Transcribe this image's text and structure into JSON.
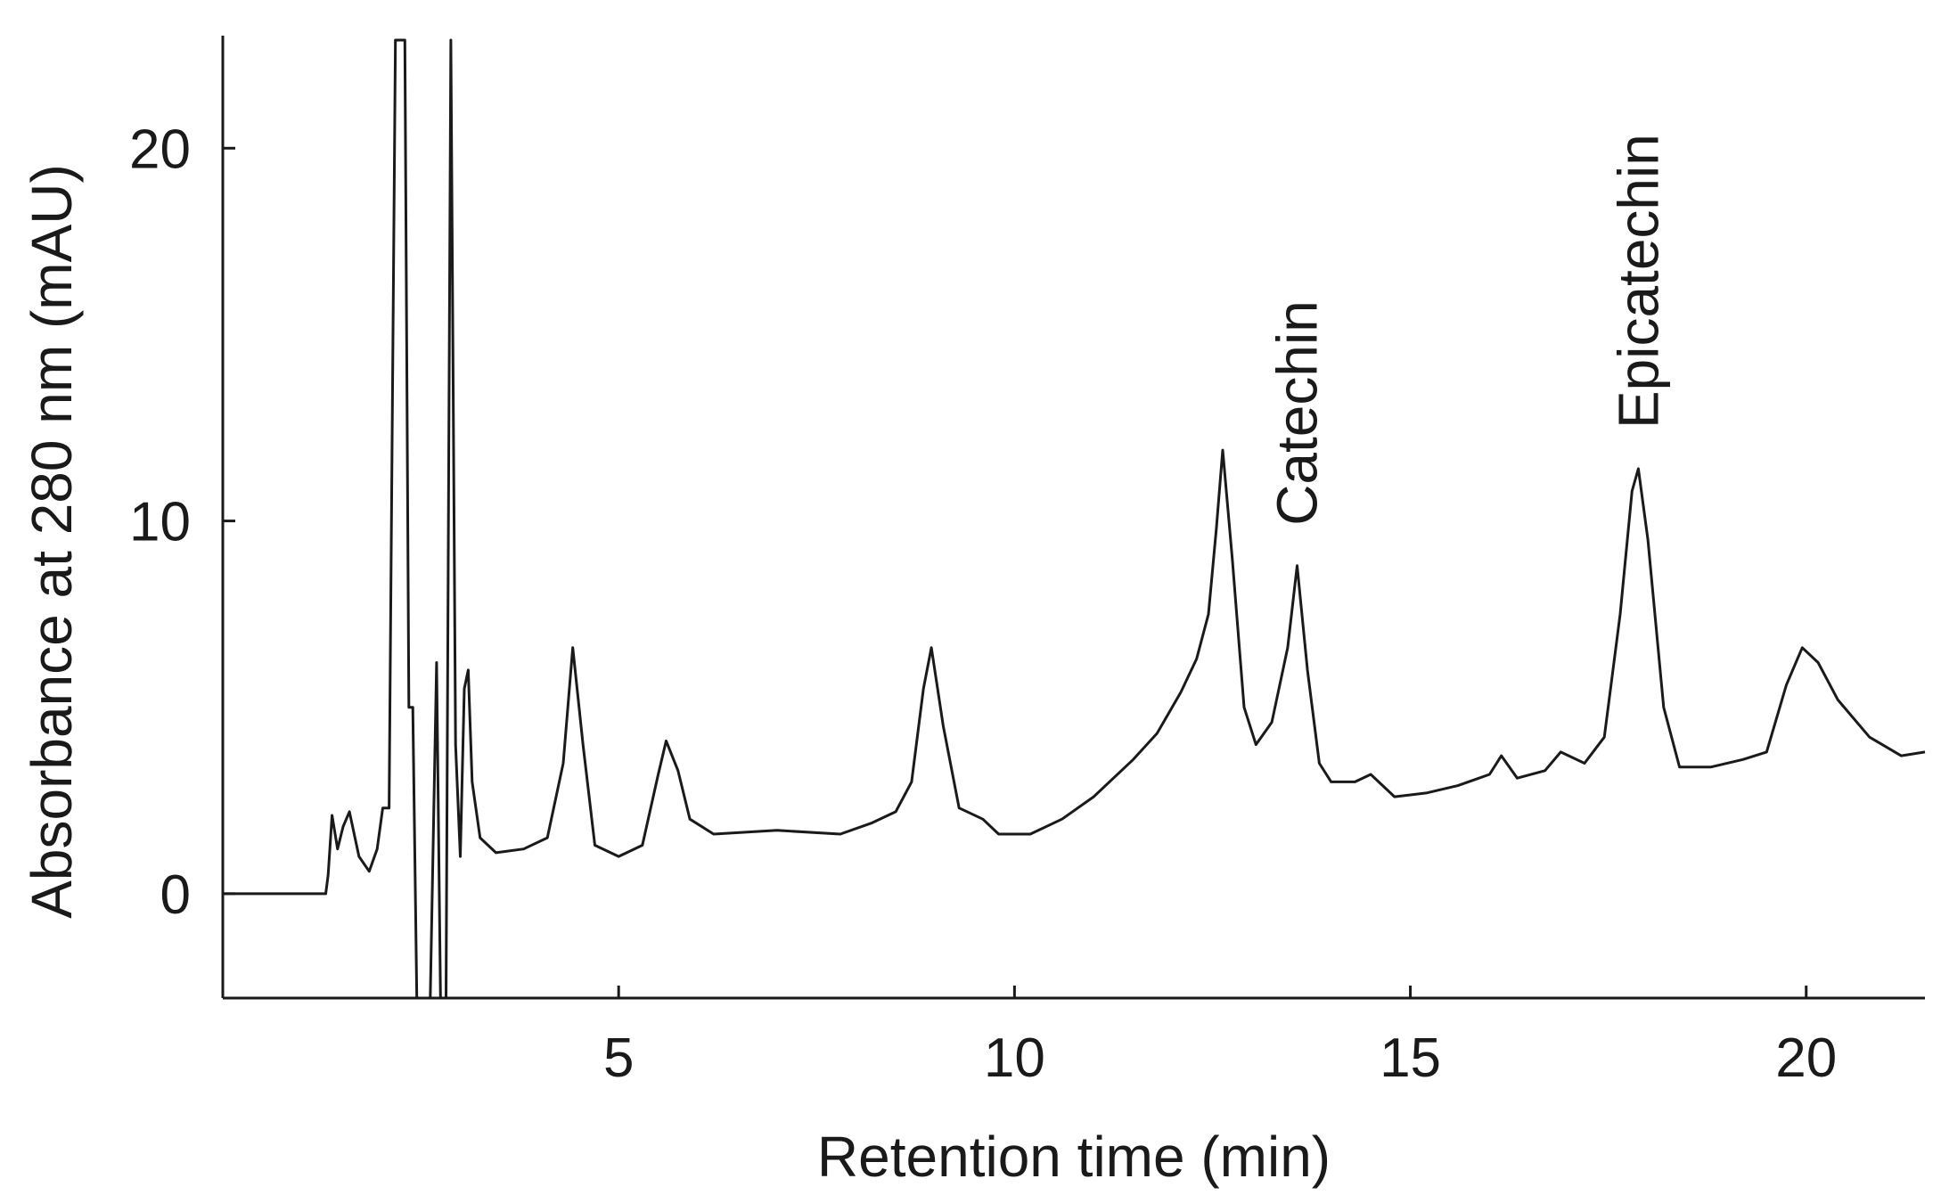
{
  "chart_data": {
    "type": "line",
    "title": "",
    "xlabel": "Retention time (min)",
    "ylabel": "Absorbance at 280 nm (mAU)",
    "xlim": [
      0,
      21.5
    ],
    "ylim": [
      -2.8,
      22.9
    ],
    "x_ticks": [
      5,
      10,
      15,
      20
    ],
    "x_tick_labels": [
      "5",
      "10",
      "15",
      "20"
    ],
    "y_ticks": [
      0,
      10,
      20
    ],
    "y_tick_labels": [
      "0",
      "10",
      "20"
    ],
    "grid": false,
    "legend": "none",
    "line_color": "#1a1a1a",
    "series": [
      {
        "points": [
          [
            0.0,
            0.0
          ],
          [
            1.3,
            0.0
          ],
          [
            1.33,
            0.5
          ],
          [
            1.38,
            2.1
          ],
          [
            1.45,
            1.2
          ],
          [
            1.52,
            1.8
          ],
          [
            1.6,
            2.2
          ],
          [
            1.72,
            1.0
          ],
          [
            1.85,
            0.6
          ],
          [
            1.95,
            1.2
          ],
          [
            2.02,
            2.3
          ],
          [
            2.1,
            2.3
          ],
          [
            2.18,
            22.9
          ],
          [
            2.3,
            22.9
          ],
          [
            2.35,
            5.0
          ],
          [
            2.4,
            5.0
          ],
          [
            2.45,
            -2.8
          ],
          [
            2.62,
            -2.8
          ],
          [
            2.7,
            6.2
          ],
          [
            2.75,
            -2.8
          ],
          [
            2.82,
            -2.8
          ],
          [
            2.88,
            22.9
          ],
          [
            2.94,
            4.0
          ],
          [
            3.0,
            1.0
          ],
          [
            3.05,
            5.5
          ],
          [
            3.1,
            6.0
          ],
          [
            3.15,
            3.0
          ],
          [
            3.25,
            1.5
          ],
          [
            3.45,
            1.1
          ],
          [
            3.8,
            1.2
          ],
          [
            4.1,
            1.5
          ],
          [
            4.3,
            3.5
          ],
          [
            4.42,
            6.6
          ],
          [
            4.55,
            4.0
          ],
          [
            4.7,
            1.3
          ],
          [
            5.0,
            1.0
          ],
          [
            5.3,
            1.3
          ],
          [
            5.5,
            3.2
          ],
          [
            5.6,
            4.1
          ],
          [
            5.75,
            3.3
          ],
          [
            5.9,
            2.0
          ],
          [
            6.2,
            1.6
          ],
          [
            7.0,
            1.7
          ],
          [
            7.8,
            1.6
          ],
          [
            8.2,
            1.9
          ],
          [
            8.5,
            2.2
          ],
          [
            8.7,
            3.0
          ],
          [
            8.85,
            5.5
          ],
          [
            8.95,
            6.6
          ],
          [
            9.1,
            4.5
          ],
          [
            9.3,
            2.3
          ],
          [
            9.6,
            2.0
          ],
          [
            9.8,
            1.6
          ],
          [
            10.2,
            1.6
          ],
          [
            10.6,
            2.0
          ],
          [
            11.0,
            2.6
          ],
          [
            11.5,
            3.6
          ],
          [
            11.8,
            4.3
          ],
          [
            12.1,
            5.4
          ],
          [
            12.3,
            6.3
          ],
          [
            12.45,
            7.5
          ],
          [
            12.55,
            9.8
          ],
          [
            12.63,
            11.9
          ],
          [
            12.75,
            9.0
          ],
          [
            12.9,
            5.0
          ],
          [
            13.05,
            4.0
          ],
          [
            13.25,
            4.6
          ],
          [
            13.45,
            6.6
          ],
          [
            13.57,
            8.8
          ],
          [
            13.7,
            6.0
          ],
          [
            13.85,
            3.5
          ],
          [
            14.0,
            3.0
          ],
          [
            14.3,
            3.0
          ],
          [
            14.5,
            3.2
          ],
          [
            14.8,
            2.6
          ],
          [
            15.2,
            2.7
          ],
          [
            15.6,
            2.9
          ],
          [
            16.0,
            3.2
          ],
          [
            16.15,
            3.7
          ],
          [
            16.35,
            3.1
          ],
          [
            16.7,
            3.3
          ],
          [
            16.9,
            3.8
          ],
          [
            17.2,
            3.5
          ],
          [
            17.45,
            4.2
          ],
          [
            17.65,
            7.5
          ],
          [
            17.8,
            10.8
          ],
          [
            17.88,
            11.4
          ],
          [
            18.0,
            9.5
          ],
          [
            18.2,
            5.0
          ],
          [
            18.4,
            3.4
          ],
          [
            18.8,
            3.4
          ],
          [
            19.2,
            3.6
          ],
          [
            19.5,
            3.8
          ],
          [
            19.75,
            5.6
          ],
          [
            19.95,
            6.6
          ],
          [
            20.15,
            6.2
          ],
          [
            20.4,
            5.2
          ],
          [
            20.8,
            4.2
          ],
          [
            21.2,
            3.7
          ],
          [
            21.5,
            3.8
          ]
        ]
      }
    ],
    "annotations": [
      {
        "text": "Catechin",
        "x": 13.57,
        "y": 8.8
      },
      {
        "text": "Epicatechin",
        "x": 17.88,
        "y": 11.4
      }
    ]
  }
}
